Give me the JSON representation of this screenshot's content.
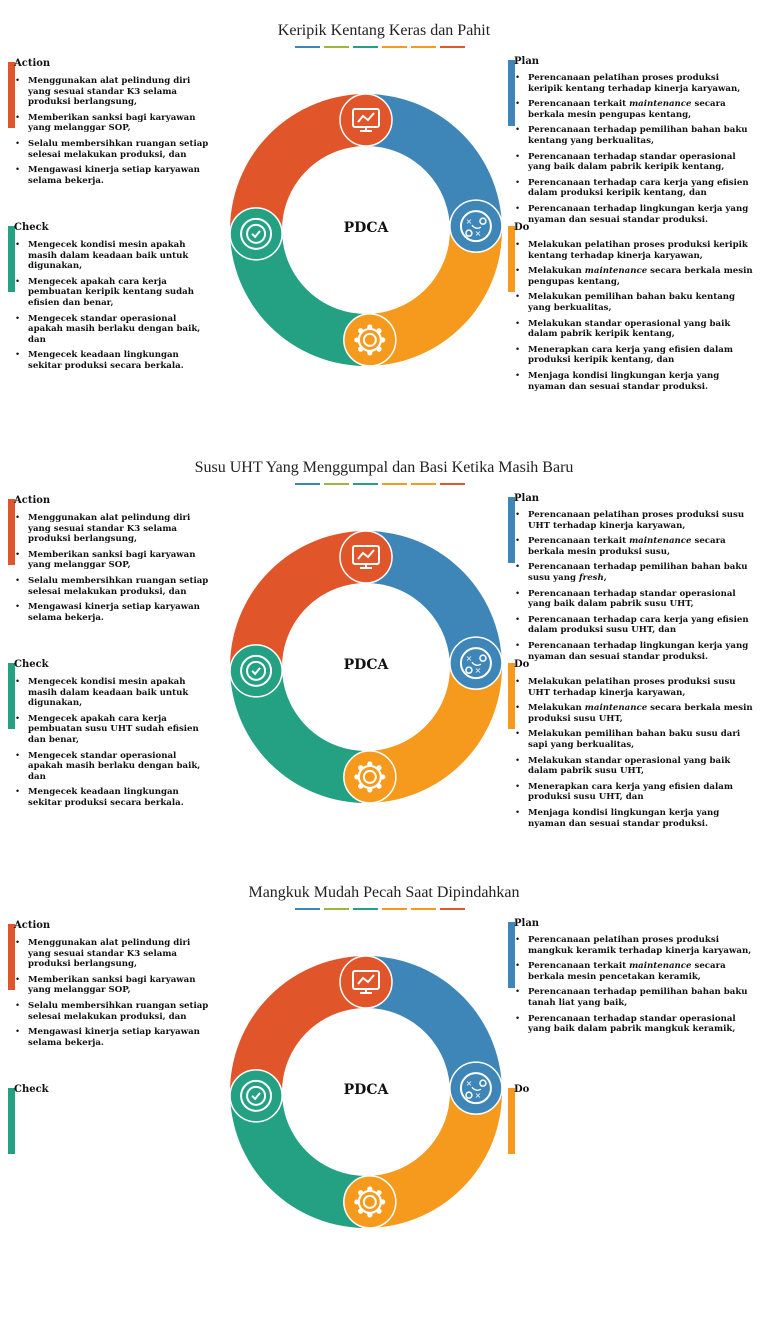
{
  "colors": {
    "action": "#e1552a",
    "plan": "#3f86b8",
    "check": "#24a083",
    "do": "#f59a1c",
    "deco": [
      "#3f86b8",
      "#9cb73d",
      "#24a083",
      "#f59a1c",
      "#f59a1c",
      "#e1552a"
    ]
  },
  "icons": {
    "action": "monitor-chart-icon",
    "plan": "strategy-plan-icon",
    "check": "check-circle-icon",
    "do": "gear-icon"
  },
  "sections": [
    {
      "title": "Keripik Kentang Keras dan Pahit",
      "center": "PDCA",
      "action": {
        "heading": "Action",
        "items": [
          "Menggunakan alat pelindung diri yang sesuai standar K3 selama produksi berlangsung,",
          "Memberikan sanksi bagi karyawan yang melanggar SOP,",
          "Selalu membersihkan ruangan setiap selesai melakukan produksi, dan",
          "Mengawasi kinerja setiap karyawan selama bekerja."
        ]
      },
      "check": {
        "heading": "Check",
        "items": [
          "Mengecek kondisi mesin apakah masih dalam keadaan baik untuk digunakan,",
          "Mengecek apakah cara kerja pembuatan keripik kentang sudah efisien dan benar,",
          "Mengecek standar operasional apakah masih berlaku dengan baik, dan",
          "Mengecek keadaan lingkungan sekitar produksi secara berkala."
        ]
      },
      "plan": {
        "heading": "Plan",
        "items": [
          "Perencanaan pelatihan proses produksi keripik kentang terhadap kinerja karyawan,",
          "Perencanaan terkait maintenance secara berkala mesin pengupas kentang,",
          "Perencanaan terhadap pemilihan bahan baku kentang yang berkualitas,",
          "Perencanaan terhadap standar operasional yang baik dalam pabrik keripik kentang,",
          "Perencanaan terhadap cara kerja yang efisien dalam produksi keripik kentang, dan",
          "Perencanaan terhadap lingkungan kerja yang nyaman dan sesuai standar produksi."
        ]
      },
      "do": {
        "heading": "Do",
        "items": [
          "Melakukan pelatihan proses produksi keripik kentang terhadap kinerja karyawan,",
          "Melakukan maintenance secara berkala mesin pengupas kentang,",
          "Melakukan pemilihan bahan baku kentang yang berkualitas,",
          "Melakukan standar operasional yang baik dalam pabrik keripik kentang,",
          "Menerapkan cara kerja yang efisien dalam produksi keripik kentang, dan",
          "Menjaga kondisi lingkungan kerja yang nyaman dan sesuai standar produksi."
        ]
      }
    },
    {
      "title": "Susu UHT Yang Menggumpal dan Basi Ketika Masih Baru",
      "center": "PDCA",
      "action": {
        "heading": "Action",
        "items": [
          "Menggunakan alat pelindung diri yang sesuai standar K3 selama produksi berlangsung,",
          "Memberikan sanksi bagi karyawan yang melanggar SOP,",
          "Selalu membersihkan ruangan setiap selesai melakukan produksi, dan",
          "Mengawasi kinerja setiap karyawan selama bekerja."
        ]
      },
      "check": {
        "heading": "Check",
        "items": [
          "Mengecek kondisi mesin apakah masih dalam keadaan baik untuk digunakan,",
          "Mengecek apakah cara kerja pembuatan susu UHT sudah efisien dan benar,",
          "Mengecek standar operasional apakah masih berlaku dengan baik, dan",
          "Mengecek keadaan lingkungan sekitar produksi secara berkala."
        ]
      },
      "plan": {
        "heading": "Plan",
        "items": [
          "Perencanaan pelatihan proses produksi susu UHT terhadap kinerja karyawan,",
          "Perencanaan terkait maintenance secara berkala mesin produksi susu,",
          "Perencanaan terhadap pemilihan bahan baku susu yang fresh,",
          "Perencanaan terhadap standar operasional yang baik dalam pabrik susu UHT,",
          "Perencanaan terhadap cara kerja yang efisien dalam produksi susu UHT, dan",
          "Perencanaan terhadap lingkungan kerja yang nyaman dan sesuai standar produksi."
        ]
      },
      "do": {
        "heading": "Do",
        "items": [
          "Melakukan pelatihan proses produksi susu UHT terhadap kinerja karyawan,",
          "Melakukan maintenance secara berkala mesin produksi susu UHT,",
          "Melakukan pemilihan bahan baku susu dari sapi yang berkualitas,",
          "Melakukan standar operasional yang baik dalam pabrik susu UHT,",
          "Menerapkan cara kerja yang efisien dalam produksi susu UHT, dan",
          "Menjaga kondisi lingkungan kerja yang nyaman dan sesuai standar produksi."
        ]
      }
    },
    {
      "title": "Mangkuk Mudah Pecah Saat Dipindahkan",
      "center": "PDCA",
      "action": {
        "heading": "Action",
        "items": [
          "Menggunakan alat pelindung diri yang sesuai standar K3 selama produksi berlangsung,",
          "Memberikan sanksi bagi karyawan yang melanggar SOP,",
          "Selalu membersihkan ruangan setiap selesai melakukan produksi, dan",
          "Mengawasi kinerja setiap karyawan selama bekerja."
        ]
      },
      "check": {
        "heading": "Check",
        "items": []
      },
      "plan": {
        "heading": "Plan",
        "items": [
          "Perencanaan pelatihan proses produksi mangkuk keramik terhadap kinerja karyawan,",
          "Perencanaan terkait maintenance secara berkala mesin pencetakan keramik,",
          "Perencanaan terhadap pemilihan bahan baku tanah liat yang baik,",
          "Perencanaan terhadap standar operasional yang baik dalam pabrik mangkuk keramik,"
        ]
      },
      "do": {
        "heading": "Do",
        "items": []
      }
    }
  ]
}
